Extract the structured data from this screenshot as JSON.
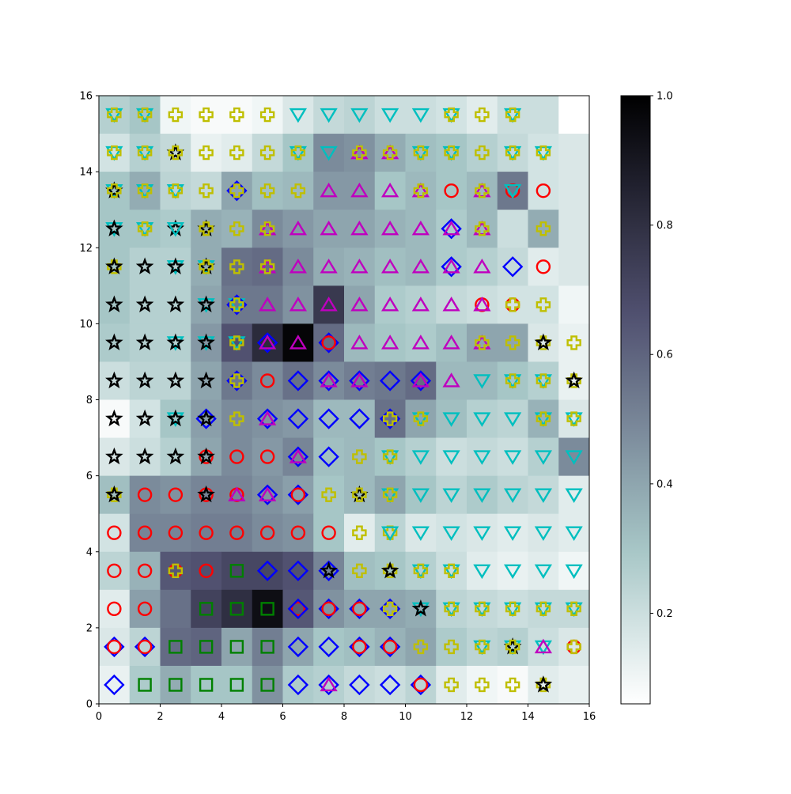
{
  "chart_data": {
    "type": "heatmap",
    "title": "",
    "xlabel": "",
    "ylabel": "",
    "xlim": [
      0,
      16
    ],
    "ylim": [
      0,
      16
    ],
    "x_ticks": [
      "0",
      "2",
      "4",
      "6",
      "8",
      "10",
      "12",
      "14",
      "16"
    ],
    "y_ticks": [
      "0",
      "2",
      "4",
      "6",
      "8",
      "10",
      "12",
      "14",
      "16"
    ],
    "colormap": "bone_r",
    "colorbar": {
      "range": [
        0.06,
        1.0
      ],
      "ticks": [
        "0.2",
        "0.4",
        "0.6",
        "0.8",
        "1.0"
      ],
      "tick_values": [
        0.2,
        0.4,
        0.6,
        0.8,
        1.0
      ]
    },
    "grid": false,
    "legend": "none",
    "rows_top_to_bottom": [
      [
        0.26,
        0.3,
        0.1,
        0.08,
        0.08,
        0.1,
        0.16,
        0.22,
        0.24,
        0.2,
        0.2,
        0.18,
        0.14,
        0.2,
        0.2,
        0.06
      ],
      [
        0.18,
        0.26,
        0.22,
        0.12,
        0.14,
        0.22,
        0.3,
        0.48,
        0.46,
        0.38,
        0.32,
        0.3,
        0.26,
        0.22,
        0.18,
        0.16
      ],
      [
        0.3,
        0.38,
        0.24,
        0.22,
        0.4,
        0.32,
        0.34,
        0.44,
        0.44,
        0.3,
        0.34,
        0.3,
        0.34,
        0.54,
        0.18,
        0.16
      ],
      [
        0.3,
        0.3,
        0.28,
        0.38,
        0.36,
        0.48,
        0.44,
        0.4,
        0.4,
        0.36,
        0.34,
        0.28,
        0.34,
        0.2,
        0.38,
        0.16
      ],
      [
        0.3,
        0.26,
        0.26,
        0.38,
        0.56,
        0.58,
        0.48,
        0.38,
        0.36,
        0.32,
        0.34,
        0.28,
        0.26,
        0.22,
        0.14,
        0.16
      ],
      [
        0.3,
        0.26,
        0.26,
        0.4,
        0.54,
        0.54,
        0.46,
        0.76,
        0.4,
        0.28,
        0.26,
        0.22,
        0.2,
        0.18,
        0.18,
        0.1
      ],
      [
        0.28,
        0.26,
        0.26,
        0.44,
        0.66,
        0.82,
        0.98,
        0.58,
        0.34,
        0.3,
        0.28,
        0.32,
        0.4,
        0.4,
        0.16,
        0.12
      ],
      [
        0.2,
        0.24,
        0.24,
        0.4,
        0.54,
        0.48,
        0.56,
        0.48,
        0.52,
        0.54,
        0.58,
        0.34,
        0.34,
        0.3,
        0.26,
        0.12
      ],
      [
        0.08,
        0.18,
        0.3,
        0.42,
        0.48,
        0.46,
        0.44,
        0.34,
        0.34,
        0.56,
        0.4,
        0.32,
        0.26,
        0.24,
        0.36,
        0.16
      ],
      [
        0.16,
        0.2,
        0.26,
        0.4,
        0.48,
        0.44,
        0.5,
        0.32,
        0.34,
        0.3,
        0.26,
        0.2,
        0.22,
        0.2,
        0.26,
        0.48
      ],
      [
        0.32,
        0.48,
        0.46,
        0.5,
        0.5,
        0.46,
        0.42,
        0.3,
        0.34,
        0.4,
        0.3,
        0.24,
        0.28,
        0.24,
        0.22,
        0.14
      ],
      [
        0.18,
        0.5,
        0.5,
        0.52,
        0.52,
        0.48,
        0.46,
        0.3,
        0.14,
        0.24,
        0.16,
        0.18,
        0.16,
        0.14,
        0.16,
        0.14
      ],
      [
        0.24,
        0.36,
        0.64,
        0.66,
        0.7,
        0.7,
        0.66,
        0.5,
        0.32,
        0.3,
        0.26,
        0.2,
        0.14,
        0.12,
        0.14,
        0.1
      ],
      [
        0.14,
        0.42,
        0.56,
        0.72,
        0.8,
        0.94,
        0.64,
        0.46,
        0.4,
        0.4,
        0.38,
        0.24,
        0.22,
        0.2,
        0.22,
        0.22
      ],
      [
        0.16,
        0.24,
        0.58,
        0.6,
        0.4,
        0.52,
        0.4,
        0.3,
        0.32,
        0.36,
        0.4,
        0.28,
        0.24,
        0.26,
        0.2,
        0.16
      ],
      [
        0.12,
        0.28,
        0.38,
        0.3,
        0.3,
        0.46,
        0.28,
        0.26,
        0.22,
        0.2,
        0.24,
        0.14,
        0.1,
        0.08,
        0.14,
        0.12
      ]
    ],
    "marker_legend": {
      "D": {
        "shape": "diamond",
        "color": "#0000ff"
      },
      "s": {
        "shape": "square",
        "color": "#008000"
      },
      "o": {
        "shape": "circle",
        "color": "#ff0000"
      },
      "*": {
        "shape": "star",
        "color": "#000000"
      },
      "v": {
        "shape": "triangle-down",
        "color": "#00bfbf"
      },
      "^": {
        "shape": "triangle-up",
        "color": "#bf00bf"
      },
      "P": {
        "shape": "plus",
        "color": "#bfbf00"
      }
    },
    "markers_rows_bottom_to_top": [
      [
        [
          "D"
        ],
        [
          "s"
        ],
        [
          "s"
        ],
        [
          "s"
        ],
        [
          "s"
        ],
        [
          "s"
        ],
        [
          "D"
        ],
        [
          "D",
          "^"
        ],
        [
          "D"
        ],
        [
          "D"
        ],
        [
          "D",
          "o"
        ],
        [
          "P"
        ],
        [
          "P"
        ],
        [
          "P"
        ],
        [
          "P",
          "*"
        ],
        []
      ],
      [
        [
          "D",
          "o"
        ],
        [
          "D",
          "o"
        ],
        [
          "s"
        ],
        [
          "s"
        ],
        [
          "s"
        ],
        [
          "s"
        ],
        [
          "D"
        ],
        [
          "D"
        ],
        [
          "D",
          "o"
        ],
        [
          "D",
          "o"
        ],
        [
          "P"
        ],
        [
          "P"
        ],
        [
          "v",
          "P"
        ],
        [
          "v",
          "*",
          "P"
        ],
        [
          "v",
          "^"
        ],
        [
          "o",
          "P"
        ]
      ],
      [
        [
          "o"
        ],
        [
          "o"
        ],
        [],
        [
          "s"
        ],
        [
          "s"
        ],
        [
          "s"
        ],
        [
          "o",
          "D"
        ],
        [
          "D",
          "o"
        ],
        [
          "D",
          "o"
        ],
        [
          "D",
          "P"
        ],
        [
          "v",
          "*"
        ],
        [
          "v",
          "P"
        ],
        [
          "v",
          "P"
        ],
        [
          "v",
          "P"
        ],
        [
          "v",
          "P"
        ],
        [
          "v",
          "P"
        ]
      ],
      [
        [
          "o"
        ],
        [
          "o"
        ],
        [
          "o",
          "P"
        ],
        [
          "o"
        ],
        [
          "s"
        ],
        [
          "D"
        ],
        [
          "D"
        ],
        [
          "D",
          "*"
        ],
        [
          "P"
        ],
        [
          "P",
          "*"
        ],
        [
          "v",
          "P"
        ],
        [
          "v",
          "P"
        ],
        [
          "v"
        ],
        [
          "v"
        ],
        [
          "v"
        ],
        [
          "v"
        ]
      ],
      [
        [
          "o"
        ],
        [
          "o"
        ],
        [
          "o"
        ],
        [
          "o"
        ],
        [
          "o"
        ],
        [
          "o"
        ],
        [
          "o"
        ],
        [
          "o"
        ],
        [
          "P"
        ],
        [
          "P",
          "v"
        ],
        [
          "v"
        ],
        [
          "v"
        ],
        [
          "v"
        ],
        [
          "v"
        ],
        [
          "v"
        ],
        [
          "v"
        ]
      ],
      [
        [
          "P",
          "*"
        ],
        [
          "o"
        ],
        [
          "o"
        ],
        [
          "o",
          "*"
        ],
        [
          "o",
          "^"
        ],
        [
          "D",
          "^"
        ],
        [
          "D",
          "o"
        ],
        [
          "P"
        ],
        [
          "*",
          "P"
        ],
        [
          "v",
          "P"
        ],
        [
          "v"
        ],
        [
          "v"
        ],
        [
          "v"
        ],
        [
          "v"
        ],
        [
          "v"
        ],
        [
          "v"
        ]
      ],
      [
        [
          "*"
        ],
        [
          "*"
        ],
        [
          "*"
        ],
        [
          "o",
          "*"
        ],
        [
          "o"
        ],
        [
          "o"
        ],
        [
          "D",
          "^"
        ],
        [
          "D"
        ],
        [
          "P"
        ],
        [
          "v",
          "P"
        ],
        [
          "v"
        ],
        [
          "v"
        ],
        [
          "v"
        ],
        [
          "v"
        ],
        [
          "v"
        ],
        [
          "v"
        ]
      ],
      [
        [
          "*"
        ],
        [
          "*"
        ],
        [
          "v",
          "*"
        ],
        [
          "D",
          "*"
        ],
        [
          "P"
        ],
        [
          "D",
          "^"
        ],
        [
          "D"
        ],
        [
          "D"
        ],
        [
          "D"
        ],
        [
          "D",
          "P"
        ],
        [
          "v",
          "P"
        ],
        [
          "v"
        ],
        [
          "v"
        ],
        [
          "v"
        ],
        [
          "v",
          "P"
        ],
        [
          "v",
          "P"
        ]
      ],
      [
        [
          "*"
        ],
        [
          "*"
        ],
        [
          "*"
        ],
        [
          "*"
        ],
        [
          "D",
          "P"
        ],
        [
          "o"
        ],
        [
          "D"
        ],
        [
          "D",
          "^"
        ],
        [
          "D",
          "^"
        ],
        [
          "D"
        ],
        [
          "D",
          "^"
        ],
        [
          "^"
        ],
        [
          "v"
        ],
        [
          "v",
          "P"
        ],
        [
          "v",
          "P"
        ],
        [
          "P",
          "*"
        ]
      ],
      [
        [
          "*"
        ],
        [
          "*"
        ],
        [
          "v",
          "*"
        ],
        [
          "v",
          "*"
        ],
        [
          "v",
          "P"
        ],
        [
          "D",
          "^"
        ],
        [
          "^"
        ],
        [
          "D",
          "o"
        ],
        [
          "^"
        ],
        [
          "^"
        ],
        [
          "^"
        ],
        [
          "^"
        ],
        [
          "^",
          "P"
        ],
        [
          "P"
        ],
        [
          "P",
          "*"
        ],
        [
          "P"
        ]
      ],
      [
        [
          "*"
        ],
        [
          "*"
        ],
        [
          "*"
        ],
        [
          "v",
          "*"
        ],
        [
          "v",
          "D",
          "P"
        ],
        [
          "^"
        ],
        [
          "^"
        ],
        [
          "^"
        ],
        [
          "^"
        ],
        [
          "^"
        ],
        [
          "^"
        ],
        [
          "^"
        ],
        [
          "o",
          "^"
        ],
        [
          "o",
          "P"
        ],
        [
          "P"
        ],
        []
      ],
      [
        [
          "P",
          "*"
        ],
        [
          "*"
        ],
        [
          "v",
          "*"
        ],
        [
          "v",
          "*",
          "P"
        ],
        [
          "P"
        ],
        [
          "^",
          "P"
        ],
        [
          "^"
        ],
        [
          "^"
        ],
        [
          "^"
        ],
        [
          "^"
        ],
        [
          "^"
        ],
        [
          "D",
          "^"
        ],
        [
          "^"
        ],
        [
          "D"
        ],
        [
          "o"
        ],
        []
      ],
      [
        [
          "v",
          "*"
        ],
        [
          "v",
          "P"
        ],
        [
          "*",
          "v"
        ],
        [
          "*",
          "P"
        ],
        [
          "P"
        ],
        [
          "^",
          "P"
        ],
        [
          "^"
        ],
        [
          "^"
        ],
        [
          "^"
        ],
        [
          "^"
        ],
        [
          "^"
        ],
        [
          "D",
          "^"
        ],
        [
          "^",
          "P"
        ],
        [],
        [
          "P"
        ],
        []
      ],
      [
        [
          "v",
          "*",
          "P"
        ],
        [
          "v",
          "P"
        ],
        [
          "v",
          "P"
        ],
        [
          "P"
        ],
        [
          "D",
          "P"
        ],
        [
          "P"
        ],
        [
          "P"
        ],
        [
          "^"
        ],
        [
          "^"
        ],
        [
          "^"
        ],
        [
          "^",
          "P"
        ],
        [
          "o"
        ],
        [
          "^",
          "P"
        ],
        [
          "o",
          "v"
        ],
        [
          "o"
        ],
        []
      ],
      [
        [
          "v",
          "P"
        ],
        [
          "v",
          "P"
        ],
        [
          "*",
          "P"
        ],
        [
          "P"
        ],
        [
          "P"
        ],
        [
          "P"
        ],
        [
          "v",
          "P"
        ],
        [
          "v"
        ],
        [
          "^",
          "P"
        ],
        [
          "^",
          "P"
        ],
        [
          "v",
          "P"
        ],
        [
          "v",
          "P"
        ],
        [
          "P"
        ],
        [
          "v",
          "P"
        ],
        [
          "v",
          "P"
        ],
        []
      ],
      [
        [
          "v",
          "P"
        ],
        [
          "v",
          "P"
        ],
        [
          "P"
        ],
        [
          "P"
        ],
        [
          "P"
        ],
        [
          "P"
        ],
        [
          "v"
        ],
        [
          "v"
        ],
        [
          "v"
        ],
        [
          "v"
        ],
        [
          "v"
        ],
        [
          "v",
          "P"
        ],
        [
          "P"
        ],
        [
          "v",
          "P"
        ],
        [],
        []
      ]
    ]
  }
}
